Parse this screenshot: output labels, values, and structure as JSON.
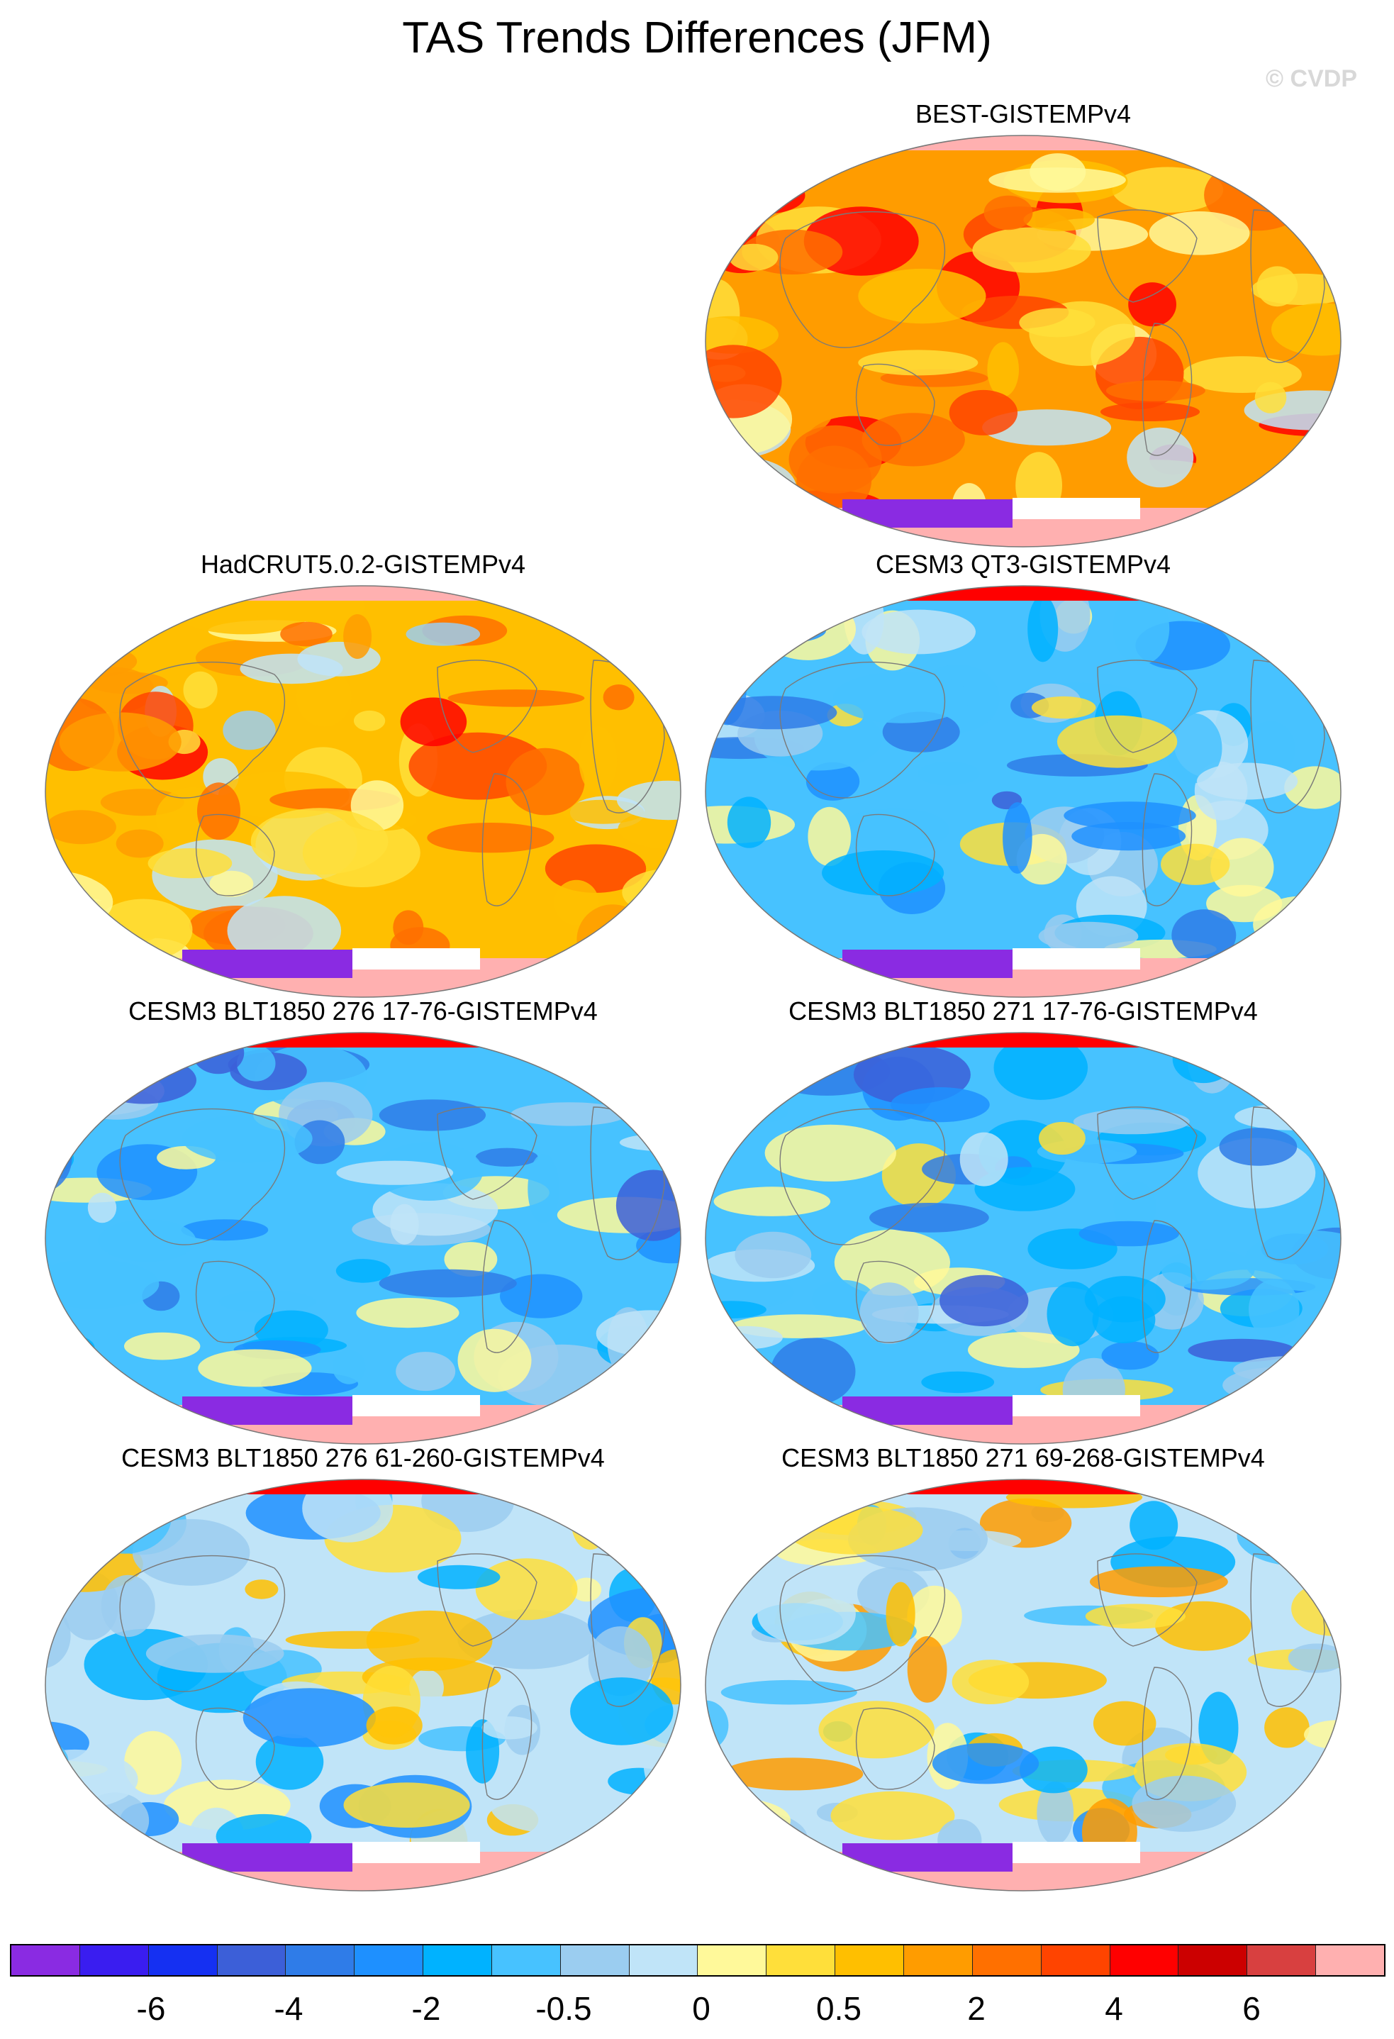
{
  "title": "TAS Trends Differences (JFM)",
  "copyright": "© CVDP",
  "panels": [
    {
      "label": "BEST-GISTEMPv4",
      "mood": 1.0,
      "seed": 3
    },
    {
      "label": "HadCRUT5.0.2-GISTEMPv4",
      "mood": 0.8,
      "seed": 7
    },
    {
      "label": "CESM3 QT3-GISTEMPv4",
      "mood": -0.7,
      "seed": 11
    },
    {
      "label": "CESM3 BLT1850 276 17-76-GISTEMPv4",
      "mood": -0.85,
      "seed": 17
    },
    {
      "label": "CESM3 BLT1850 271 17-76-GISTEMPv4",
      "mood": -0.75,
      "seed": 23
    },
    {
      "label": "CESM3 BLT1850 276 61-260-GISTEMPv4",
      "mood": -0.25,
      "seed": 29
    },
    {
      "label": "CESM3 BLT1850 271 69-268-GISTEMPv4",
      "mood": -0.15,
      "seed": 31
    }
  ],
  "colorbar": {
    "colors": [
      "#8a2be2",
      "#3a1df0",
      "#1530f2",
      "#3c5fd8",
      "#2f7ce8",
      "#1e90ff",
      "#00b2ff",
      "#47c2ff",
      "#9bcdf0",
      "#c0e4f8",
      "#fff99a",
      "#ffdf3a",
      "#ffbf00",
      "#ff9c00",
      "#ff7000",
      "#ff4400",
      "#ff0000",
      "#cc0000",
      "#d84040",
      "#ffb0b0"
    ],
    "labels": [
      "-6",
      "-4",
      "-2",
      "-0.5",
      "0",
      "0.5",
      "2",
      "4",
      "6"
    ]
  }
}
